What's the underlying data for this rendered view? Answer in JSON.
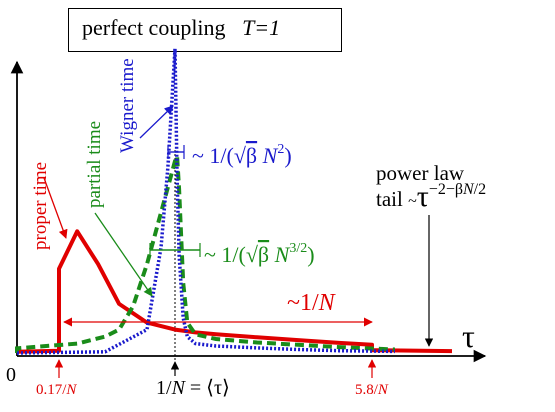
{
  "chart_data": {
    "type": "line",
    "title": "perfect coupling",
    "title_param": "T=1",
    "x_axis_symbol": "τ",
    "origin_label": "0",
    "grid": false,
    "legend": "none",
    "tick_annotations": [
      {
        "label": "0.17/N",
        "x": 0.17,
        "color": "#e00000"
      },
      {
        "label": "1/N = ⟨τ⟩",
        "x": 1.0,
        "color": "#000000"
      },
      {
        "label": "5.8/N",
        "x": 5.8,
        "color": "#e00000"
      }
    ],
    "series": [
      {
        "name": "proper time",
        "color": "#e00000",
        "style": "solid",
        "x": [
          -1.0,
          0.0,
          0.17,
          0.17,
          0.3,
          0.45,
          0.6,
          0.8,
          1.0,
          1.5,
          2.0,
          3.0,
          4.0,
          5.0,
          5.8,
          5.8,
          6.5
        ],
        "y": [
          0.0,
          0.005,
          0.01,
          0.36,
          0.52,
          0.38,
          0.21,
          0.13,
          0.1,
          0.088,
          0.08,
          0.067,
          0.055,
          0.043,
          0.035,
          0.012,
          0.008
        ]
      },
      {
        "name": "partial time",
        "color": "#1a8c1a",
        "style": "dashed",
        "x": [
          -1.0,
          0.0,
          0.3,
          0.5,
          0.6,
          0.7,
          0.8,
          0.9,
          1.0,
          1.05,
          1.1,
          1.2,
          1.3,
          1.5,
          2.0,
          3.0,
          4.0,
          5.0,
          6.0
        ],
        "y": [
          0.0,
          0.02,
          0.04,
          0.07,
          0.1,
          0.2,
          0.38,
          0.6,
          0.82,
          0.84,
          0.7,
          0.3,
          0.13,
          0.08,
          0.06,
          0.045,
          0.035,
          0.025,
          0.015
        ]
      },
      {
        "name": "Wigner time",
        "color": "#1a1acc",
        "style": "dotted",
        "x": [
          -1.0,
          0.0,
          0.5,
          0.8,
          0.9,
          0.95,
          1.0,
          1.05,
          1.1,
          1.2,
          1.3,
          1.5,
          2.0,
          3.0,
          4.0,
          5.0,
          6.0
        ],
        "y": [
          0.0,
          0.0,
          0.005,
          0.1,
          0.45,
          0.8,
          1.3,
          0.75,
          0.42,
          0.15,
          0.07,
          0.04,
          0.03,
          0.022,
          0.015,
          0.01,
          0.007
        ]
      }
    ],
    "annotations": [
      {
        "text": "power law",
        "color": "#000000"
      },
      {
        "text": "tail ~τ^(−2−βN/2)",
        "color": "#000000"
      },
      {
        "text": "~1/N",
        "color": "#e00000"
      },
      {
        "text": "~1/(√β N²)",
        "color": "#1a1acc"
      },
      {
        "text": "~1/(√β N^(3/2))",
        "color": "#1a8c1a"
      }
    ]
  }
}
